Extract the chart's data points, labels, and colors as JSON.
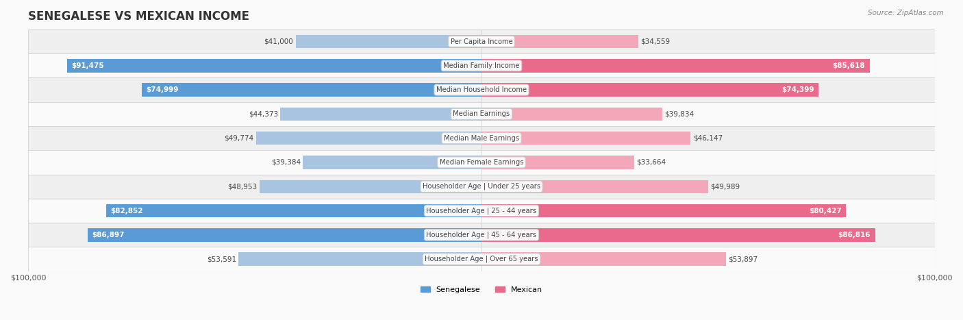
{
  "title": "SENEGALESE VS MEXICAN INCOME",
  "source": "Source: ZipAtlas.com",
  "categories": [
    "Per Capita Income",
    "Median Family Income",
    "Median Household Income",
    "Median Earnings",
    "Median Male Earnings",
    "Median Female Earnings",
    "Householder Age | Under 25 years",
    "Householder Age | 25 - 44 years",
    "Householder Age | 45 - 64 years",
    "Householder Age | Over 65 years"
  ],
  "senegalese_values": [
    41000,
    91475,
    74999,
    44373,
    49774,
    39384,
    48953,
    82852,
    86897,
    53591
  ],
  "mexican_values": [
    34559,
    85618,
    74399,
    39834,
    46147,
    33664,
    49989,
    80427,
    86816,
    53897
  ],
  "senegalese_labels": [
    "$41,000",
    "$91,475",
    "$74,999",
    "$44,373",
    "$49,774",
    "$39,384",
    "$48,953",
    "$82,852",
    "$86,897",
    "$53,591"
  ],
  "mexican_labels": [
    "$34,559",
    "$85,618",
    "$74,399",
    "$39,834",
    "$46,147",
    "$33,664",
    "$49,989",
    "$80,427",
    "$86,816",
    "$53,897"
  ],
  "max_val": 100000,
  "senegalese_color_light": "#a8c4e0",
  "senegalese_color_dark": "#5b9bd5",
  "mexican_color_light": "#f4a7b9",
  "mexican_color_dark": "#e96a8a",
  "bg_color": "#f5f5f5",
  "row_bg_color": "#efefef",
  "row_bg_alt": "#fafafa",
  "label_inside_threshold": 70000,
  "center_label_color": "#555555",
  "bar_height": 0.55,
  "legend_senegalese": "Senegalese",
  "legend_mexican": "Mexican",
  "xlabel_left": "$100,000",
  "xlabel_right": "$100,000"
}
